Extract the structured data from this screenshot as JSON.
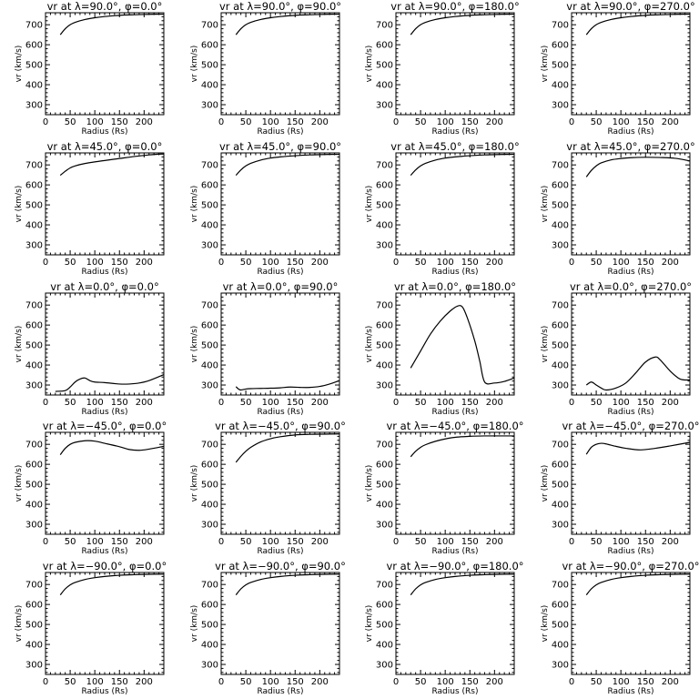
{
  "chart_data": [
    {
      "type": "line",
      "title": "vr at λ=90.0°, φ=0.0°",
      "xlabel": "Radius (Rs)",
      "ylabel": "vr (km/s)",
      "xlim": [
        0,
        240
      ],
      "ylim": [
        250,
        760
      ],
      "xticks": [
        0,
        50,
        100,
        150,
        200
      ],
      "yticks": [
        300,
        400,
        500,
        600,
        700
      ],
      "x": [
        30,
        40,
        50,
        60,
        80,
        100,
        120,
        150,
        180,
        210,
        240
      ],
      "y": [
        650,
        680,
        700,
        712,
        726,
        735,
        741,
        747,
        750,
        752,
        753
      ]
    },
    {
      "type": "line",
      "title": "vr at λ=90.0°, φ=90.0°",
      "xlabel": "Radius (Rs)",
      "ylabel": "vr (km/s)",
      "xlim": [
        0,
        240
      ],
      "ylim": [
        250,
        760
      ],
      "xticks": [
        0,
        50,
        100,
        150,
        200
      ],
      "yticks": [
        300,
        400,
        500,
        600,
        700
      ],
      "x": [
        30,
        40,
        50,
        60,
        80,
        100,
        120,
        150,
        180,
        210,
        240
      ],
      "y": [
        650,
        680,
        700,
        712,
        726,
        735,
        741,
        747,
        750,
        752,
        753
      ]
    },
    {
      "type": "line",
      "title": "vr at λ=90.0°, φ=180.0°",
      "xlabel": "Radius (Rs)",
      "ylabel": "vr (km/s)",
      "xlim": [
        0,
        240
      ],
      "ylim": [
        250,
        760
      ],
      "xticks": [
        0,
        50,
        100,
        150,
        200
      ],
      "yticks": [
        300,
        400,
        500,
        600,
        700
      ],
      "x": [
        30,
        40,
        50,
        60,
        80,
        100,
        120,
        150,
        180,
        210,
        240
      ],
      "y": [
        650,
        680,
        700,
        712,
        726,
        735,
        741,
        747,
        750,
        752,
        753
      ]
    },
    {
      "type": "line",
      "title": "vr at λ=90.0°, φ=270.0°",
      "xlabel": "Radius (Rs)",
      "ylabel": "vr (km/s)",
      "xlim": [
        0,
        240
      ],
      "ylim": [
        250,
        760
      ],
      "xticks": [
        0,
        50,
        100,
        150,
        200
      ],
      "yticks": [
        300,
        400,
        500,
        600,
        700
      ],
      "x": [
        30,
        40,
        50,
        60,
        80,
        100,
        120,
        150,
        180,
        210,
        240
      ],
      "y": [
        650,
        680,
        700,
        712,
        726,
        735,
        741,
        747,
        750,
        752,
        753
      ]
    },
    {
      "type": "line",
      "title": "vr at λ=45.0°, φ=0.0°",
      "xlabel": "Radius (Rs)",
      "ylabel": "vr (km/s)",
      "xlim": [
        0,
        240
      ],
      "ylim": [
        250,
        760
      ],
      "xticks": [
        0,
        50,
        100,
        150,
        200
      ],
      "yticks": [
        300,
        400,
        500,
        600,
        700
      ],
      "x": [
        30,
        40,
        50,
        60,
        80,
        100,
        120,
        150,
        180,
        210,
        240
      ],
      "y": [
        648,
        668,
        685,
        695,
        707,
        715,
        722,
        732,
        742,
        750,
        755
      ]
    },
    {
      "type": "line",
      "title": "vr at λ=45.0°, φ=90.0°",
      "xlabel": "Radius (Rs)",
      "ylabel": "vr (km/s)",
      "xlim": [
        0,
        240
      ],
      "ylim": [
        250,
        760
      ],
      "xticks": [
        0,
        50,
        100,
        150,
        200
      ],
      "yticks": [
        300,
        400,
        500,
        600,
        700
      ],
      "x": [
        30,
        40,
        50,
        60,
        80,
        100,
        120,
        150,
        180,
        210,
        240
      ],
      "y": [
        648,
        675,
        695,
        708,
        724,
        734,
        740,
        746,
        750,
        752,
        753
      ]
    },
    {
      "type": "line",
      "title": "vr at λ=45.0°, φ=180.0°",
      "xlabel": "Radius (Rs)",
      "ylabel": "vr (km/s)",
      "xlim": [
        0,
        240
      ],
      "ylim": [
        250,
        760
      ],
      "xticks": [
        0,
        50,
        100,
        150,
        200
      ],
      "yticks": [
        300,
        400,
        500,
        600,
        700
      ],
      "x": [
        30,
        40,
        50,
        60,
        80,
        100,
        120,
        150,
        180,
        210,
        240
      ],
      "y": [
        648,
        675,
        695,
        708,
        724,
        734,
        740,
        746,
        750,
        752,
        753
      ]
    },
    {
      "type": "line",
      "title": "vr at λ=45.0°, φ=270.0°",
      "xlabel": "Radius (Rs)",
      "ylabel": "vr (km/s)",
      "xlim": [
        0,
        240
      ],
      "ylim": [
        250,
        760
      ],
      "xticks": [
        0,
        50,
        100,
        150,
        200
      ],
      "yticks": [
        300,
        400,
        500,
        600,
        700
      ],
      "x": [
        30,
        40,
        50,
        60,
        80,
        100,
        120,
        150,
        180,
        210,
        240
      ],
      "y": [
        640,
        672,
        695,
        710,
        725,
        732,
        736,
        738,
        737,
        733,
        720
      ]
    },
    {
      "type": "line",
      "title": "vr at λ=0.0°, φ=0.0°",
      "xlabel": "Radius (Rs)",
      "ylabel": "vr (km/s)",
      "xlim": [
        0,
        240
      ],
      "ylim": [
        250,
        760
      ],
      "xticks": [
        0,
        50,
        100,
        150,
        200
      ],
      "yticks": [
        300,
        400,
        500,
        600,
        700
      ],
      "x": [
        20,
        40,
        50,
        60,
        70,
        80,
        90,
        100,
        120,
        150,
        170,
        190,
        210,
        240
      ],
      "y": [
        268,
        272,
        290,
        315,
        330,
        335,
        322,
        315,
        312,
        305,
        305,
        310,
        322,
        352
      ]
    },
    {
      "type": "line",
      "title": "vr at λ=0.0°, φ=90.0°",
      "xlabel": "Radius (Rs)",
      "ylabel": "vr (km/s)",
      "xlim": [
        0,
        240
      ],
      "ylim": [
        250,
        760
      ],
      "xticks": [
        0,
        50,
        100,
        150,
        200
      ],
      "yticks": [
        300,
        400,
        500,
        600,
        700
      ],
      "x": [
        30,
        35,
        40,
        50,
        60,
        80,
        100,
        120,
        140,
        160,
        180,
        200,
        220,
        240
      ],
      "y": [
        292,
        280,
        275,
        280,
        282,
        283,
        284,
        286,
        290,
        288,
        288,
        293,
        305,
        322
      ]
    },
    {
      "type": "line",
      "title": "vr at λ=0.0°, φ=180.0°",
      "xlabel": "Radius (Rs)",
      "ylabel": "vr (km/s)",
      "xlim": [
        0,
        240
      ],
      "ylim": [
        250,
        760
      ],
      "xticks": [
        0,
        50,
        100,
        150,
        200
      ],
      "yticks": [
        300,
        400,
        500,
        600,
        700
      ],
      "x": [
        30,
        50,
        70,
        90,
        110,
        125,
        135,
        145,
        160,
        170,
        180,
        200,
        220,
        240
      ],
      "y": [
        385,
        470,
        555,
        620,
        670,
        695,
        690,
        635,
        520,
        420,
        315,
        310,
        318,
        335
      ]
    },
    {
      "type": "line",
      "title": "vr at λ=0.0°, φ=270.0°",
      "xlabel": "Radius (Rs)",
      "ylabel": "vr (km/s)",
      "xlim": [
        0,
        240
      ],
      "ylim": [
        250,
        760
      ],
      "xticks": [
        0,
        50,
        100,
        150,
        200
      ],
      "yticks": [
        300,
        400,
        500,
        600,
        700
      ],
      "x": [
        30,
        40,
        50,
        60,
        70,
        90,
        110,
        130,
        150,
        170,
        180,
        200,
        220,
        240
      ],
      "y": [
        300,
        315,
        300,
        285,
        275,
        285,
        310,
        360,
        415,
        440,
        425,
        370,
        330,
        325
      ]
    },
    {
      "type": "line",
      "title": "vr at λ=−45.0°, φ=0.0°",
      "xlabel": "Radius (Rs)",
      "ylabel": "vr (km/s)",
      "xlim": [
        0,
        240
      ],
      "ylim": [
        250,
        760
      ],
      "xticks": [
        0,
        50,
        100,
        150,
        200
      ],
      "yticks": [
        300,
        400,
        500,
        600,
        700
      ],
      "x": [
        30,
        40,
        50,
        60,
        80,
        100,
        120,
        150,
        170,
        190,
        210,
        240
      ],
      "y": [
        648,
        680,
        700,
        710,
        718,
        716,
        705,
        688,
        674,
        670,
        676,
        690
      ]
    },
    {
      "type": "line",
      "title": "vr at λ=−45.0°, φ=90.0°",
      "xlabel": "Radius (Rs)",
      "ylabel": "vr (km/s)",
      "xlim": [
        0,
        240
      ],
      "ylim": [
        250,
        760
      ],
      "xticks": [
        0,
        50,
        100,
        150,
        200
      ],
      "yticks": [
        300,
        400,
        500,
        600,
        700
      ],
      "x": [
        30,
        40,
        50,
        60,
        80,
        100,
        120,
        150,
        180,
        210,
        240
      ],
      "y": [
        610,
        640,
        665,
        685,
        712,
        728,
        738,
        747,
        750,
        751,
        752
      ]
    },
    {
      "type": "line",
      "title": "vr at λ=−45.0°, φ=180.0°",
      "xlabel": "Radius (Rs)",
      "ylabel": "vr (km/s)",
      "xlim": [
        0,
        240
      ],
      "ylim": [
        250,
        760
      ],
      "xticks": [
        0,
        50,
        100,
        150,
        200
      ],
      "yticks": [
        300,
        400,
        500,
        600,
        700
      ],
      "x": [
        30,
        40,
        50,
        60,
        80,
        100,
        120,
        150,
        180,
        210,
        240
      ],
      "y": [
        638,
        665,
        685,
        698,
        715,
        727,
        735,
        740,
        742,
        742,
        742
      ]
    },
    {
      "type": "line",
      "title": "vr at λ=−45.0°, φ=270.0°",
      "xlabel": "Radius (Rs)",
      "ylabel": "vr (km/s)",
      "xlim": [
        0,
        240
      ],
      "ylim": [
        250,
        760
      ],
      "xticks": [
        0,
        50,
        100,
        150,
        200
      ],
      "yticks": [
        300,
        400,
        500,
        600,
        700
      ],
      "x": [
        30,
        40,
        50,
        60,
        70,
        90,
        110,
        140,
        170,
        200,
        240
      ],
      "y": [
        650,
        685,
        700,
        705,
        702,
        690,
        680,
        672,
        680,
        692,
        710
      ]
    },
    {
      "type": "line",
      "title": "vr at λ=−90.0°, φ=0.0°",
      "xlabel": "Radius (Rs)",
      "ylabel": "vr (km/s)",
      "xlim": [
        0,
        240
      ],
      "ylim": [
        250,
        760
      ],
      "xticks": [
        0,
        50,
        100,
        150,
        200
      ],
      "yticks": [
        300,
        400,
        500,
        600,
        700
      ],
      "x": [
        30,
        40,
        50,
        60,
        80,
        100,
        120,
        150,
        180,
        210,
        240
      ],
      "y": [
        648,
        678,
        698,
        710,
        725,
        734,
        740,
        746,
        749,
        751,
        752
      ]
    },
    {
      "type": "line",
      "title": "vr at λ=−90.0°, φ=90.0°",
      "xlabel": "Radius (Rs)",
      "ylabel": "vr (km/s)",
      "xlim": [
        0,
        240
      ],
      "ylim": [
        250,
        760
      ],
      "xticks": [
        0,
        50,
        100,
        150,
        200
      ],
      "yticks": [
        300,
        400,
        500,
        600,
        700
      ],
      "x": [
        30,
        40,
        50,
        60,
        80,
        100,
        120,
        150,
        180,
        210,
        240
      ],
      "y": [
        648,
        678,
        698,
        710,
        725,
        734,
        740,
        746,
        749,
        751,
        752
      ]
    },
    {
      "type": "line",
      "title": "vr at λ=−90.0°, φ=180.0°",
      "xlabel": "Radius (Rs)",
      "ylabel": "vr (km/s)",
      "xlim": [
        0,
        240
      ],
      "ylim": [
        250,
        760
      ],
      "xticks": [
        0,
        50,
        100,
        150,
        200
      ],
      "yticks": [
        300,
        400,
        500,
        600,
        700
      ],
      "x": [
        30,
        40,
        50,
        60,
        80,
        100,
        120,
        150,
        180,
        210,
        240
      ],
      "y": [
        648,
        678,
        698,
        710,
        725,
        734,
        740,
        746,
        749,
        751,
        752
      ]
    },
    {
      "type": "line",
      "title": "vr at λ=−90.0°, φ=270.0°",
      "xlabel": "Radius (Rs)",
      "ylabel": "vr (km/s)",
      "xlim": [
        0,
        240
      ],
      "ylim": [
        250,
        760
      ],
      "xticks": [
        0,
        50,
        100,
        150,
        200
      ],
      "yticks": [
        300,
        400,
        500,
        600,
        700
      ],
      "x": [
        30,
        40,
        50,
        60,
        80,
        100,
        120,
        150,
        180,
        210,
        240
      ],
      "y": [
        648,
        678,
        698,
        710,
        725,
        734,
        740,
        746,
        749,
        751,
        752
      ]
    }
  ]
}
